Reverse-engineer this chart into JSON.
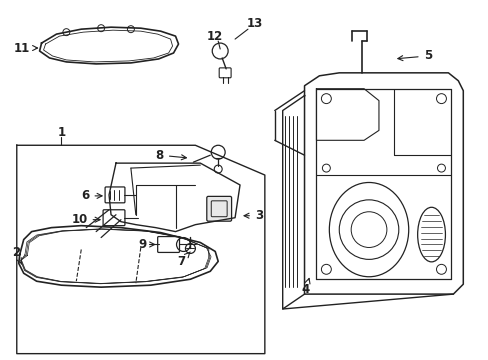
{
  "background_color": "#ffffff",
  "line_color": "#222222",
  "figsize": [
    4.89,
    3.6
  ],
  "dpi": 100
}
